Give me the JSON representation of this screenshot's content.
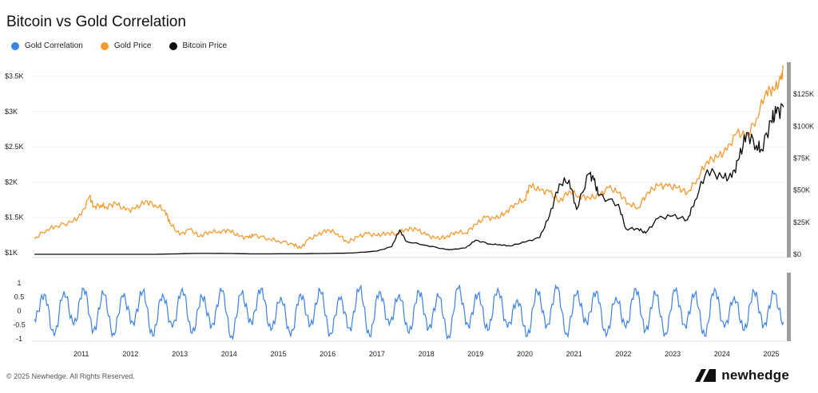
{
  "header": {
    "title": "Bitcoin vs Gold Correlation"
  },
  "legend": [
    {
      "label": "Gold Correlation",
      "color": "#3b82e6"
    },
    {
      "label": "Gold Price",
      "color": "#f59a2f"
    },
    {
      "label": "Bitcoin Price",
      "color": "#0a0a0a"
    }
  ],
  "footer": {
    "copyright": "© 2025 Newhedge. All Rights Reserved.",
    "brand": "newhedge"
  },
  "chart_data": [
    {
      "type": "line",
      "title": "Bitcoin vs Gold Correlation",
      "x_range": [
        2010.5,
        2025.8
      ],
      "x_ticks": [
        "2011",
        "2012",
        "2013",
        "2014",
        "2015",
        "2016",
        "2017",
        "2018",
        "2019",
        "2020",
        "2021",
        "2022",
        "2023",
        "2024",
        "2025"
      ],
      "y_left": {
        "range": [
          1000,
          3700
        ],
        "tick_values": [
          1000,
          1500,
          2000,
          2500,
          3000,
          3500
        ],
        "tick_labels": [
          "$1K",
          "$1.5K",
          "$2K",
          "$2.5K",
          "$3K",
          "$3.5K"
        ]
      },
      "y_right": {
        "range": [
          0,
          150000
        ],
        "tick_values": [
          0,
          25000,
          50000,
          75000,
          100000,
          125000
        ],
        "tick_labels": [
          "$0",
          "$25K",
          "$50K",
          "$75K",
          "$100K",
          "$125K"
        ]
      },
      "series": [
        {
          "name": "Gold Price",
          "axis": "left",
          "color": "#f59a2f",
          "x": [
            2010.55,
            2010.8,
            2011.0,
            2011.3,
            2011.5,
            2011.67,
            2011.75,
            2011.9,
            2012.0,
            2012.2,
            2012.4,
            2012.6,
            2012.8,
            2013.0,
            2013.2,
            2013.3,
            2013.5,
            2013.7,
            2013.9,
            2014.1,
            2014.3,
            2014.5,
            2014.7,
            2014.9,
            2015.0,
            2015.3,
            2015.5,
            2015.8,
            2015.95,
            2016.1,
            2016.3,
            2016.5,
            2016.7,
            2016.9,
            2017.1,
            2017.3,
            2017.5,
            2017.7,
            2017.9,
            2018.1,
            2018.3,
            2018.5,
            2018.7,
            2018.9,
            2019.1,
            2019.3,
            2019.5,
            2019.7,
            2019.9,
            2020.1,
            2020.3,
            2020.5,
            2020.6,
            2020.8,
            2021.0,
            2021.2,
            2021.4,
            2021.6,
            2021.8,
            2022.0,
            2022.2,
            2022.4,
            2022.6,
            2022.8,
            2023.0,
            2023.2,
            2023.4,
            2023.6,
            2023.8,
            2024.0,
            2024.2,
            2024.4,
            2024.6,
            2024.8,
            2025.0,
            2025.2,
            2025.4,
            2025.55,
            2025.7,
            2025.75
          ],
          "y": [
            1200,
            1330,
            1380,
            1430,
            1530,
            1800,
            1650,
            1680,
            1650,
            1700,
            1600,
            1620,
            1730,
            1680,
            1600,
            1420,
            1250,
            1330,
            1230,
            1300,
            1300,
            1320,
            1230,
            1210,
            1250,
            1200,
            1170,
            1120,
            1060,
            1180,
            1250,
            1330,
            1270,
            1150,
            1220,
            1270,
            1240,
            1280,
            1270,
            1340,
            1330,
            1250,
            1200,
            1220,
            1300,
            1280,
            1400,
            1500,
            1480,
            1560,
            1700,
            1750,
            1960,
            1880,
            1860,
            1720,
            1880,
            1800,
            1780,
            1800,
            1920,
            1850,
            1700,
            1640,
            1860,
            1950,
            1940,
            1920,
            1850,
            2050,
            2300,
            2350,
            2450,
            2700,
            2650,
            2900,
            3300,
            3300,
            3450,
            3650
          ]
        },
        {
          "name": "Bitcoin Price",
          "axis": "right",
          "color": "#0a0a0a",
          "x": [
            2010.55,
            2011.5,
            2012.0,
            2013.0,
            2013.9,
            2014.5,
            2015.0,
            2016.0,
            2016.5,
            2017.0,
            2017.5,
            2017.8,
            2017.96,
            2018.1,
            2018.5,
            2018.9,
            2019.0,
            2019.3,
            2019.5,
            2019.8,
            2020.0,
            2020.2,
            2020.5,
            2020.8,
            2021.0,
            2021.2,
            2021.4,
            2021.55,
            2021.8,
            2021.9,
            2022.0,
            2022.4,
            2022.55,
            2022.8,
            2022.95,
            2023.2,
            2023.5,
            2023.8,
            2023.95,
            2024.2,
            2024.5,
            2024.7,
            2024.85,
            2025.0,
            2025.2,
            2025.3,
            2025.5,
            2025.6,
            2025.75
          ],
          "y": [
            1,
            10,
            6,
            15,
            700,
            600,
            300,
            400,
            650,
            1000,
            2500,
            6000,
            19000,
            10000,
            7000,
            3800,
            3600,
            5000,
            11000,
            8000,
            7500,
            6500,
            9500,
            13000,
            30000,
            55000,
            58000,
            35000,
            63000,
            58000,
            46000,
            39000,
            20000,
            20000,
            16500,
            28000,
            30000,
            27000,
            42000,
            66000,
            60000,
            60000,
            75000,
            95000,
            85000,
            82000,
            104000,
            110000,
            115000
          ]
        }
      ]
    },
    {
      "type": "line",
      "title": "",
      "x_range": [
        2010.5,
        2025.8
      ],
      "y_range": [
        -1,
        1
      ],
      "y_tick_values": [
        1,
        0.5,
        0,
        -0.5,
        -1
      ],
      "y_tick_labels": [
        "1",
        "0.5",
        "0",
        "-0.5",
        "-1"
      ],
      "series": [
        {
          "name": "Gold Correlation",
          "color": "#3b82e6",
          "x": [
            2010.55,
            2010.75,
            2010.95,
            2011.15,
            2011.35,
            2011.55,
            2011.75,
            2011.95,
            2012.15,
            2012.35,
            2012.55,
            2012.75,
            2012.95,
            2013.15,
            2013.35,
            2013.55,
            2013.75,
            2013.95,
            2014.15,
            2014.35,
            2014.55,
            2014.75,
            2014.95,
            2015.15,
            2015.35,
            2015.55,
            2015.75,
            2015.95,
            2016.15,
            2016.35,
            2016.55,
            2016.75,
            2016.95,
            2017.15,
            2017.35,
            2017.55,
            2017.75,
            2017.95,
            2018.15,
            2018.35,
            2018.55,
            2018.75,
            2018.95,
            2019.15,
            2019.35,
            2019.55,
            2019.75,
            2019.95,
            2020.15,
            2020.35,
            2020.55,
            2020.75,
            2020.95,
            2021.15,
            2021.35,
            2021.55,
            2021.75,
            2021.95,
            2022.15,
            2022.35,
            2022.55,
            2022.75,
            2022.95,
            2023.15,
            2023.35,
            2023.55,
            2023.75,
            2023.95,
            2024.15,
            2024.35,
            2024.55,
            2024.75,
            2024.95,
            2025.15,
            2025.35,
            2025.55,
            2025.75
          ],
          "y": [
            -0.3,
            0.6,
            -0.9,
            0.7,
            -0.5,
            0.8,
            -0.7,
            0.6,
            -0.8,
            0.5,
            -0.4,
            0.7,
            -0.9,
            0.6,
            -0.6,
            0.8,
            -0.8,
            0.5,
            -0.5,
            0.7,
            -0.9,
            0.6,
            -0.4,
            0.8,
            -0.7,
            0.5,
            -0.9,
            0.6,
            -0.5,
            0.7,
            -0.8,
            0.4,
            -0.6,
            0.8,
            -0.9,
            0.7,
            -0.5,
            0.6,
            -0.8,
            0.7,
            -0.6,
            0.5,
            -0.9,
            0.8,
            -0.5,
            0.6,
            -0.7,
            0.8,
            -0.6,
            0.4,
            -0.9,
            0.7,
            -0.5,
            0.8,
            -0.8,
            0.6,
            -0.4,
            0.7,
            -0.9,
            0.5,
            -0.6,
            0.8,
            -0.7,
            0.6,
            -0.8,
            0.7,
            -0.5,
            0.6,
            -0.9,
            0.8,
            -0.6,
            0.5,
            -0.7,
            0.7,
            -0.5,
            0.6,
            -0.4
          ]
        }
      ]
    }
  ]
}
